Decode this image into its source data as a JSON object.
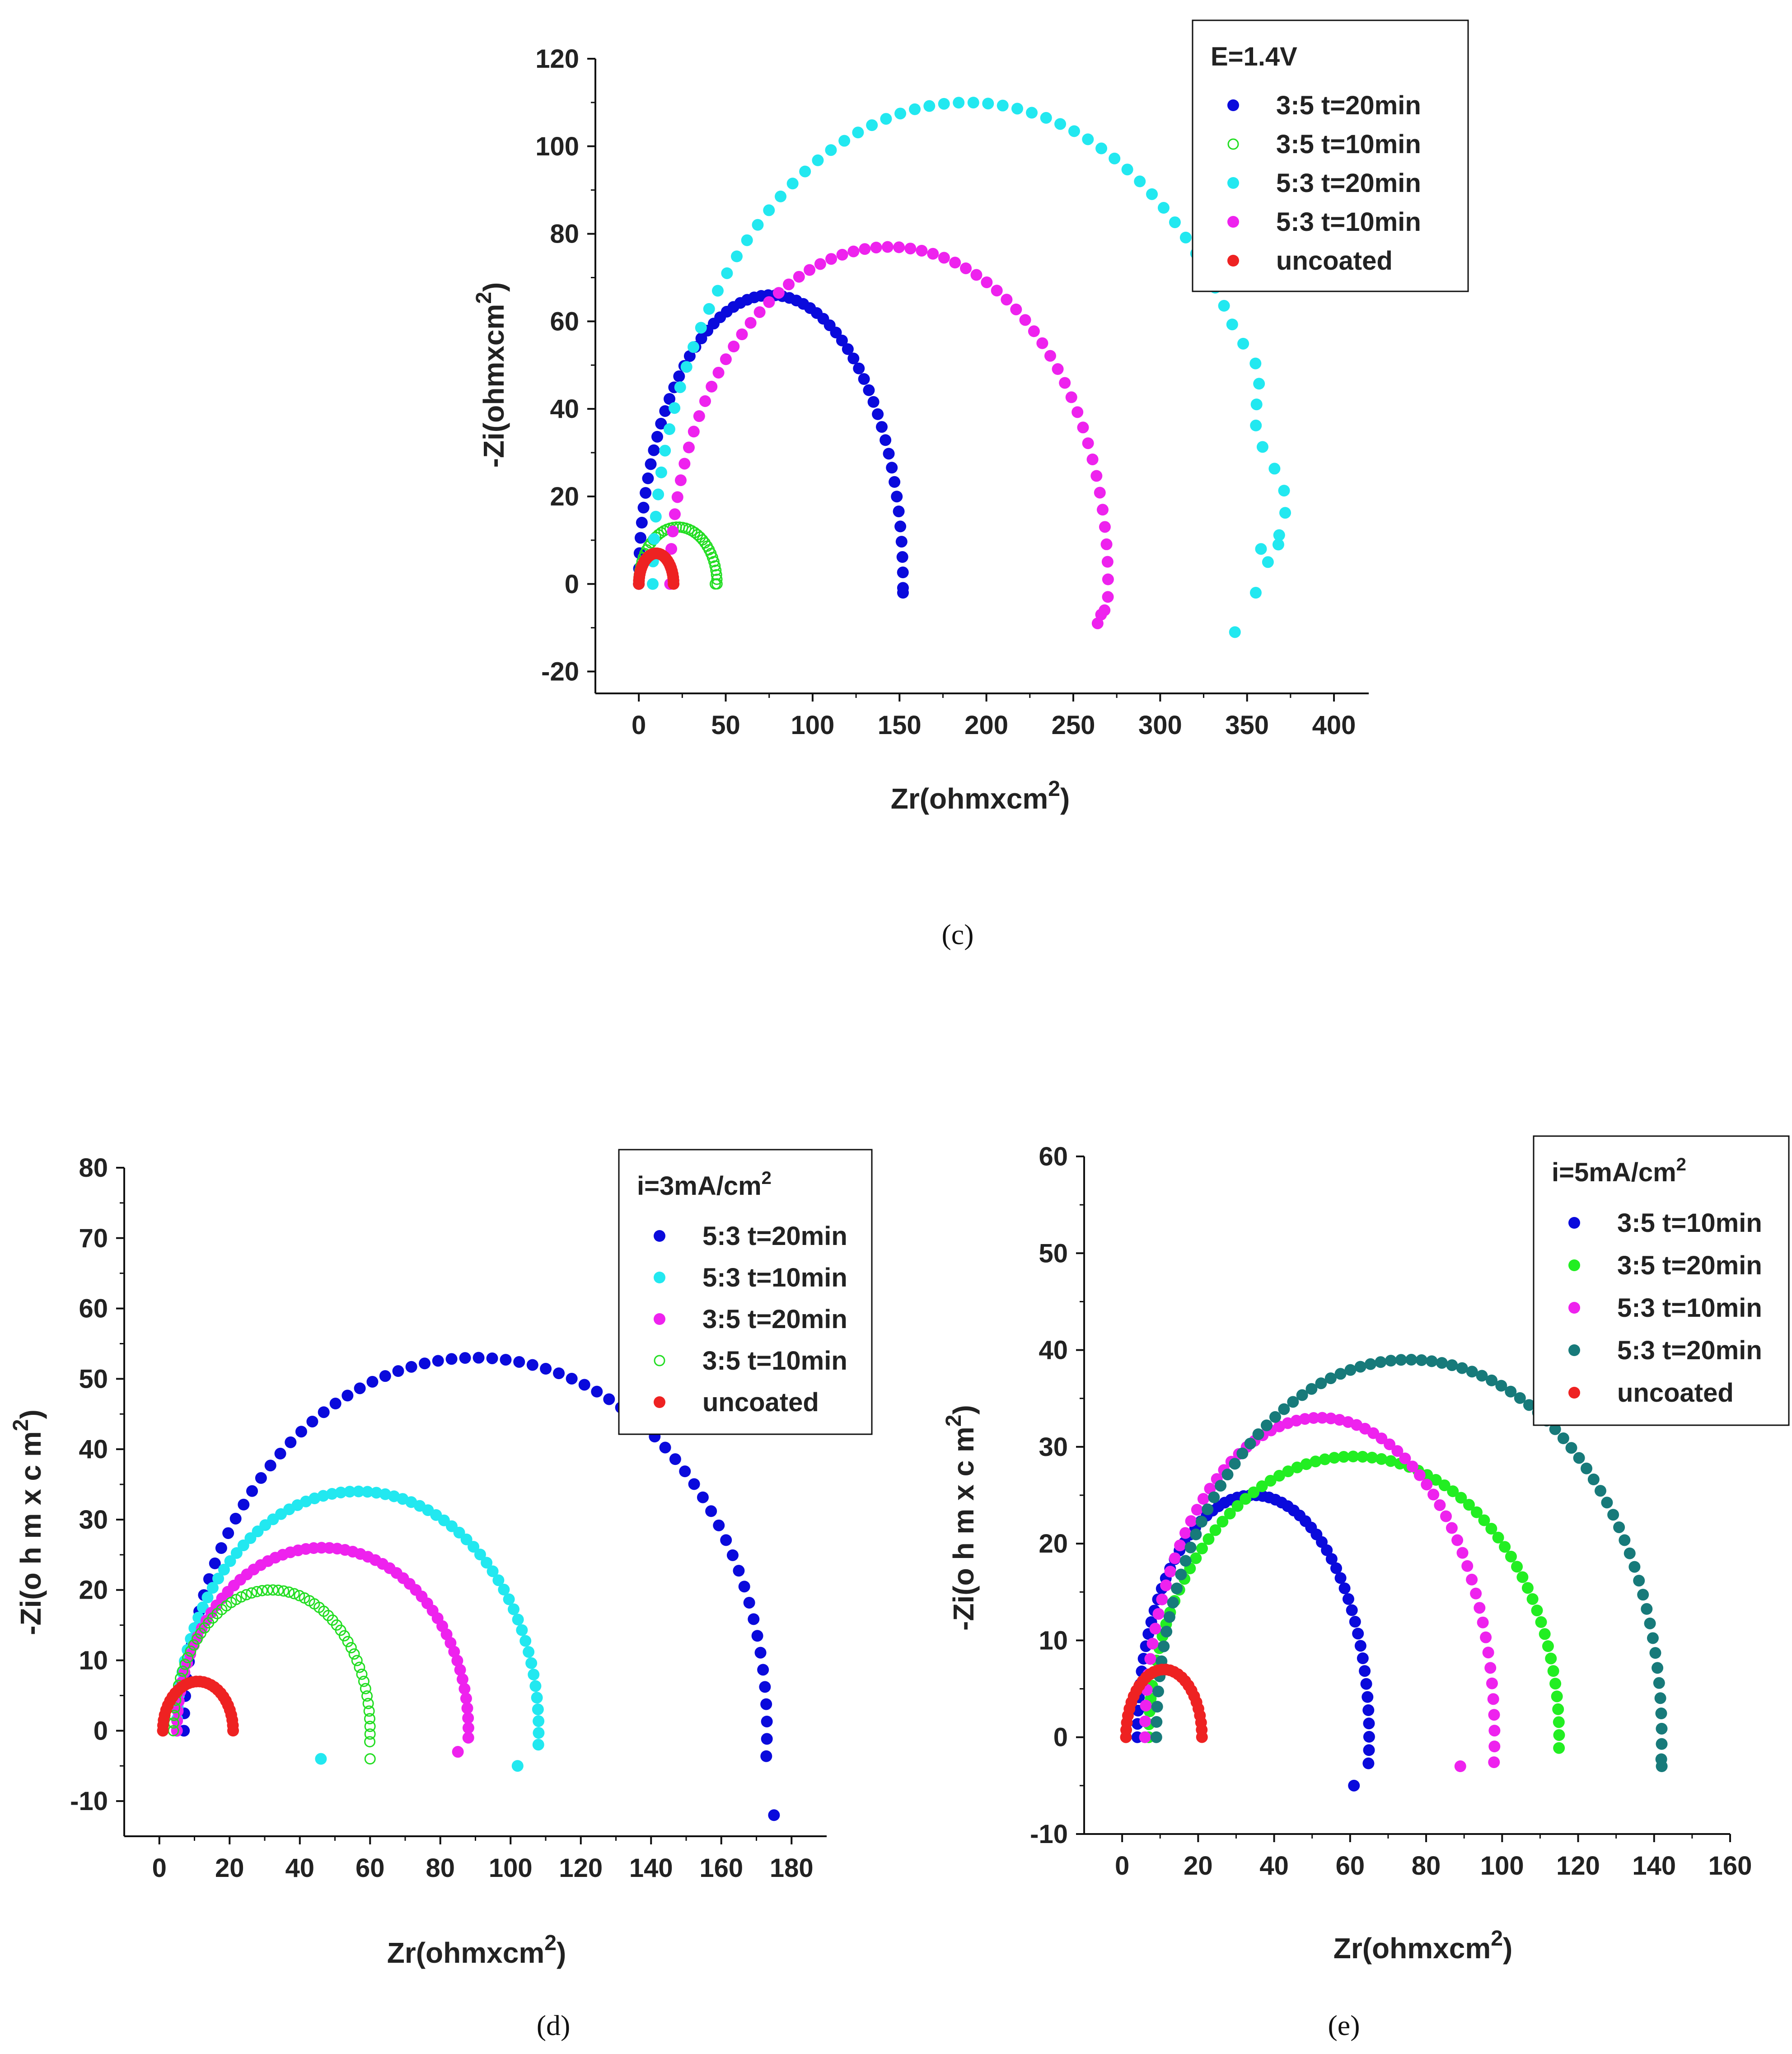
{
  "chart_data": [
    {
      "id": "c",
      "type": "scatter",
      "caption": "(c)",
      "xlabel": {
        "main": "Zr(ohmxcm",
        "sup": "2",
        "tail": ")"
      },
      "ylabel": {
        "main": "-Zi(ohmxcm",
        "sup": "2",
        "tail": ")"
      },
      "xlim": [
        -25,
        420
      ],
      "ylim": [
        -25,
        120
      ],
      "xticks": [
        0,
        50,
        100,
        150,
        200,
        250,
        300,
        350,
        400
      ],
      "yticks": [
        -20,
        0,
        20,
        40,
        60,
        80,
        100,
        120
      ],
      "legend": {
        "position": "top-right",
        "title": "E=1.4V",
        "title_sup": ""
      },
      "series": [
        {
          "name": "3:5 t=20min",
          "color": "#0a0adc",
          "marker": "filled",
          "rs": 0,
          "rp": 152,
          "peak": 66,
          "n": 60,
          "theta_end": 3.155,
          "jitter": 0,
          "extra": [
            [
              152,
              -2
            ]
          ]
        },
        {
          "name": "3:5 t=10min",
          "color": "#22dd22",
          "marker": "open",
          "rs": 0,
          "rp": 45,
          "peak": 13,
          "n": 40,
          "theta_end": 3.14,
          "jitter": 0,
          "extra": [
            [
              44,
              0
            ]
          ]
        },
        {
          "name": "5:3 t=20min",
          "color": "#22e8f0",
          "marker": "filled",
          "rs": 8,
          "rp": 362,
          "peak": 110,
          "n": 66,
          "theta_end": 3.04,
          "jitter": 5,
          "extra": [
            [
              343,
              -11
            ],
            [
              355,
              -2
            ],
            [
              362,
              5
            ],
            [
              368,
              9
            ],
            [
              358,
              8
            ]
          ]
        },
        {
          "name": "5:3 t=10min",
          "color": "#ee22ee",
          "marker": "filled",
          "rs": 18,
          "rp": 252,
          "peak": 77,
          "n": 62,
          "theta_end": 3.18,
          "jitter": 0,
          "extra": [
            [
              264,
              -9
            ],
            [
              266,
              -7
            ],
            [
              268,
              -6
            ]
          ]
        },
        {
          "name": "uncoated",
          "color": "#ee2222",
          "marker": "filled",
          "rs": 0,
          "rp": 20,
          "peak": 7,
          "n": 30,
          "theta_end": 3.14,
          "jitter": 0,
          "extra": []
        }
      ]
    },
    {
      "id": "d",
      "type": "scatter",
      "caption": "(d)",
      "xlabel": {
        "main": "Zr(ohmxcm",
        "sup": "2",
        "tail": ")"
      },
      "ylabel": {
        "main": "-Zi(o h m x c m",
        "sup": "2",
        "tail": ")"
      },
      "xlim": [
        -10,
        190
      ],
      "ylim": [
        -15,
        80
      ],
      "xticks": [
        0,
        20,
        40,
        60,
        80,
        100,
        120,
        140,
        160,
        180
      ],
      "yticks": [
        -10,
        0,
        10,
        20,
        30,
        40,
        50,
        60,
        70,
        80
      ],
      "legend": {
        "position": "top-right",
        "title": "i=3mA/cm",
        "title_sup": "2"
      },
      "series": [
        {
          "name": "5:3 t=20min",
          "color": "#0a0adc",
          "marker": "filled",
          "rs": 7,
          "rp": 166,
          "peak": 53,
          "n": 70,
          "theta_end": 3.21,
          "jitter": 0,
          "extra": [
            [
              175,
              -12
            ]
          ]
        },
        {
          "name": "5:3 t=10min",
          "color": "#22e8f0",
          "marker": "filled",
          "rs": 5,
          "rp": 103,
          "peak": 34,
          "n": 66,
          "theta_end": 3.2,
          "jitter": 0,
          "extra": [
            [
              102,
              -5
            ]
          ]
        },
        {
          "name": "3:5 t=20min",
          "color": "#ee22ee",
          "marker": "filled",
          "rs": 5,
          "rp": 83,
          "peak": 26,
          "n": 60,
          "theta_end": 3.18,
          "jitter": 0,
          "extra": [
            [
              85,
              -3
            ]
          ]
        },
        {
          "name": "3:5 t=10min",
          "color": "#22dd22",
          "marker": "open",
          "rs": 4,
          "rp": 56,
          "peak": 20,
          "n": 60,
          "theta_end": 3.22,
          "jitter": 0,
          "extra": [
            [
              60,
              -4
            ]
          ]
        },
        {
          "name": "uncoated",
          "color": "#ee2222",
          "marker": "filled",
          "rs": 1,
          "rp": 20,
          "peak": 7,
          "n": 30,
          "theta_end": 3.14,
          "jitter": 0,
          "extra": []
        }
      ],
      "stray_points": [
        {
          "x": 46,
          "y": -4,
          "color": "#22e8f0"
        }
      ]
    },
    {
      "id": "e",
      "type": "scatter",
      "caption": "(e)",
      "xlabel": {
        "main": "Zr(ohmxcm",
        "sup": "2",
        "tail": ")"
      },
      "ylabel": {
        "main": "-Zi(o h m x c m",
        "sup": "2",
        "tail": ")"
      },
      "xlim": [
        -10,
        160
      ],
      "ylim": [
        -10,
        60
      ],
      "xticks": [
        0,
        20,
        40,
        60,
        80,
        100,
        120,
        140,
        160
      ],
      "yticks": [
        -10,
        0,
        10,
        20,
        30,
        40,
        50,
        60
      ],
      "legend": {
        "position": "top-right",
        "title": "i=5mA/cm",
        "title_sup": "2"
      },
      "series": [
        {
          "name": "3:5 t=10min",
          "color": "#0a0adc",
          "marker": "filled",
          "rs": 4,
          "rp": 61,
          "peak": 25,
          "n": 60,
          "theta_end": 3.25,
          "jitter": 0,
          "extra": [
            [
              61,
              -5
            ]
          ]
        },
        {
          "name": "3:5 t=20min",
          "color": "#22ee22",
          "marker": "filled",
          "rs": 7,
          "rp": 108,
          "peak": 29,
          "n": 70,
          "theta_end": 3.18,
          "jitter": 0,
          "extra": []
        },
        {
          "name": "5:3 t=10min",
          "color": "#ee22ee",
          "marker": "filled",
          "rs": 6,
          "rp": 92,
          "peak": 33,
          "n": 66,
          "theta_end": 3.22,
          "jitter": 0,
          "extra": [
            [
              89,
              -3
            ]
          ]
        },
        {
          "name": "5:3 t=20min",
          "color": "#177a7a",
          "marker": "filled",
          "rs": 9,
          "rp": 133,
          "peak": 39,
          "n": 80,
          "theta_end": 3.2,
          "jitter": 0,
          "extra": [
            [
              142,
              -3
            ]
          ]
        },
        {
          "name": "uncoated",
          "color": "#ee2222",
          "marker": "filled",
          "rs": 1,
          "rp": 20,
          "peak": 7,
          "n": 30,
          "theta_end": 3.14,
          "jitter": 0,
          "extra": []
        }
      ]
    }
  ]
}
